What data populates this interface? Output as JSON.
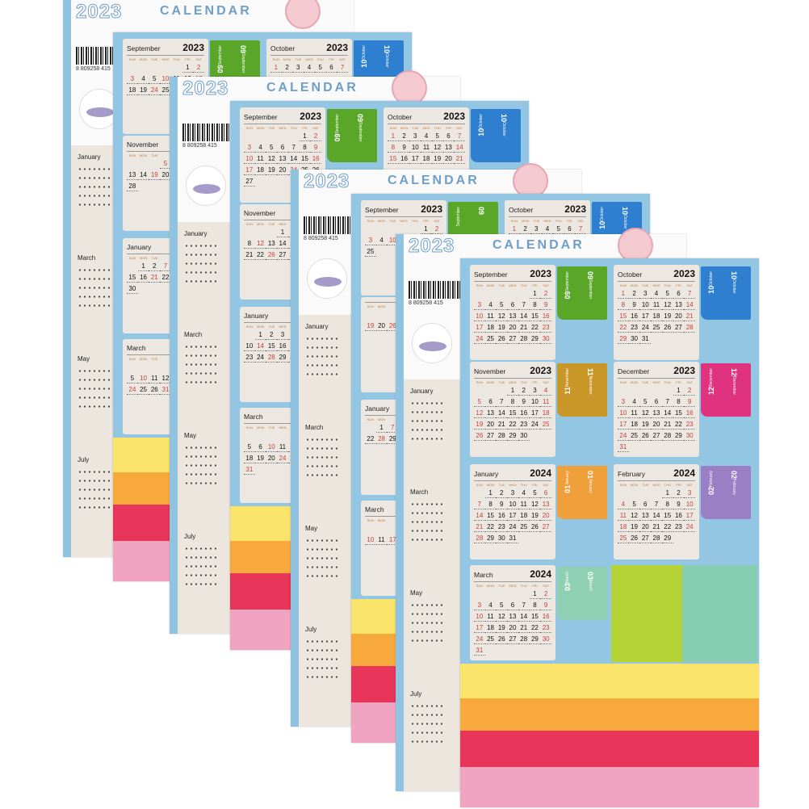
{
  "cover": {
    "year": "2023",
    "title": "CALENDAR",
    "barcode": "8 809258 415",
    "months": [
      "January",
      "March",
      "May",
      "July"
    ]
  },
  "sheet": {
    "cards": [
      {
        "month": "September",
        "year": "2023",
        "m": 8,
        "yy": 2023,
        "tab": "09",
        "tab_word": "September",
        "color": "#5aa629"
      },
      {
        "month": "October",
        "year": "2023",
        "m": 9,
        "yy": 2023,
        "tab": "10",
        "tab_word": "October",
        "color": "#2e7fcf"
      },
      {
        "month": "November",
        "year": "2023",
        "m": 10,
        "yy": 2023,
        "tab": "11",
        "tab_word": "November",
        "color": "#c99628"
      },
      {
        "month": "December",
        "year": "2023",
        "m": 11,
        "yy": 2023,
        "tab": "12",
        "tab_word": "December",
        "color": "#e0337f"
      },
      {
        "month": "January",
        "year": "2024",
        "m": 0,
        "yy": 2024,
        "tab": "01",
        "tab_word": "January",
        "color": "#f0a03a"
      },
      {
        "month": "February",
        "year": "2024",
        "m": 1,
        "yy": 2024,
        "tab": "02",
        "tab_word": "February",
        "color": "#9b7fc4"
      },
      {
        "month": "March",
        "year": "2024",
        "m": 2,
        "yy": 2024,
        "tab": "03",
        "tab_word": "March",
        "color": "#8fcfb3"
      }
    ],
    "weekdays": [
      "SUN",
      "MON",
      "TUE",
      "WED",
      "THU",
      "FRI",
      "SAT"
    ],
    "blocks": [
      "#b5d335",
      "#86cdb2"
    ],
    "bands": [
      "#f9e36a",
      "#f7a93b",
      "#e8355a",
      "#f1a3c2"
    ],
    "background": "#93c6e3"
  }
}
